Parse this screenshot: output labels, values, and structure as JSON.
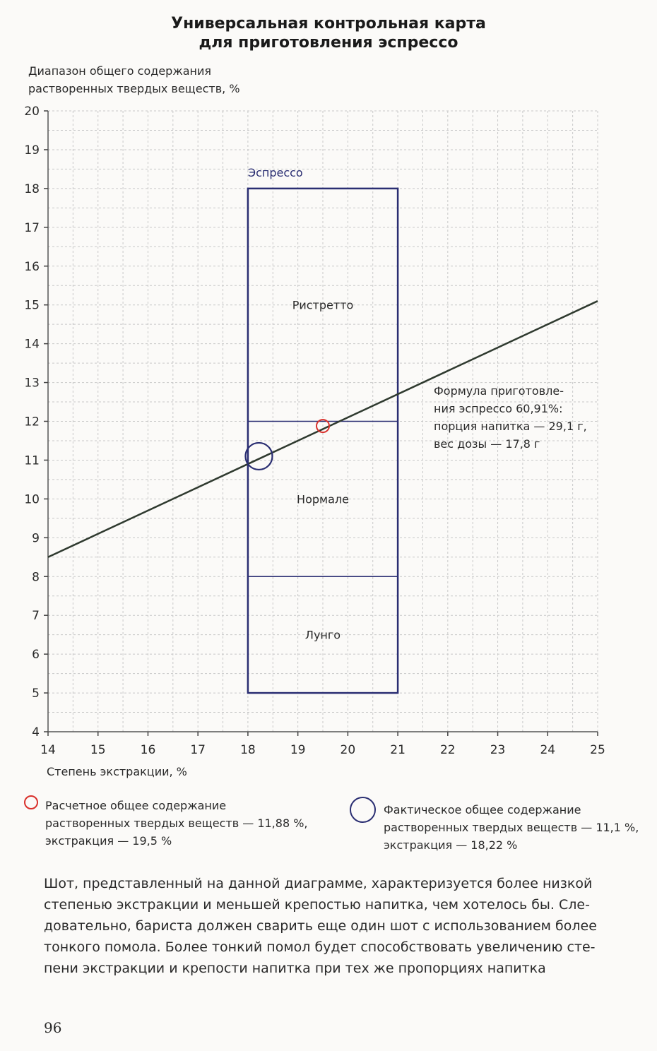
{
  "title_lines": [
    "Универсальная контрольная карта",
    "для приготовления эспрессо"
  ],
  "chart_data": {
    "type": "line",
    "title": "Универсальная контрольная карта для приготовления эспрессо",
    "ylabel_lines": [
      "Диапазон общего содержания",
      "растворенных твердых веществ, %"
    ],
    "xlabel": "Степень экстракции, %",
    "xlim": [
      14,
      25
    ],
    "ylim": [
      4,
      20
    ],
    "x_ticks": [
      14,
      15,
      16,
      17,
      18,
      19,
      20,
      21,
      22,
      23,
      24,
      25
    ],
    "y_ticks": [
      4,
      5,
      6,
      7,
      8,
      9,
      10,
      11,
      12,
      13,
      14,
      15,
      16,
      17,
      18,
      19,
      20
    ],
    "grid": true,
    "brew_line": {
      "x": [
        14,
        25
      ],
      "y": [
        8.5,
        15.1
      ]
    },
    "zones": {
      "x_range": [
        18,
        21
      ],
      "label": "Эспрессо",
      "boundaries": [
        5,
        8,
        12,
        18
      ],
      "regions": [
        {
          "name": "Ристретто",
          "y_range": [
            12,
            18
          ]
        },
        {
          "name": "Нормале",
          "y_range": [
            8,
            12
          ]
        },
        {
          "name": "Лунго",
          "y_range": [
            5,
            8
          ]
        }
      ]
    },
    "annotation_lines": [
      "Формула приготовле-",
      "ния эспрессо 60,91%:",
      "порция напитка — 29,1 г,",
      "вес дозы — 17,8 г"
    ],
    "points": [
      {
        "name": "calculated",
        "x": 19.5,
        "y": 11.88,
        "color": "#d9302b"
      },
      {
        "name": "actual",
        "x": 18.22,
        "y": 11.1,
        "color": "#2a2e72"
      }
    ]
  },
  "legend": {
    "calculated_lines": [
      "Расчетное общее содержание",
      "растворенных твердых веществ — 11,88 %,",
      "экстракция — 19,5 %"
    ],
    "actual_lines": [
      "Фактическое общее содержание",
      "растворенных твердых веществ — 11,1 %,",
      "экстракция — 18,22 %"
    ]
  },
  "body_lines": [
    "Шот, представленный на данной диаграмме, характеризуется более низкой",
    "степенью экстракции и меньшей крепостью напитка, чем хотелось бы. Сле-",
    "довательно, бариста должен сварить еще один шот с использованием более",
    "тонкого помола. Более тонкий помол будет способствовать увеличению сте-",
    "пени экстракции и крепости напитка при тех же пропорциях напитка"
  ],
  "page_number": "96",
  "colors": {
    "calculated": "#d9302b",
    "actual": "#2a2e72",
    "zone": "#2a2e72",
    "line": "#2f3a2f"
  }
}
